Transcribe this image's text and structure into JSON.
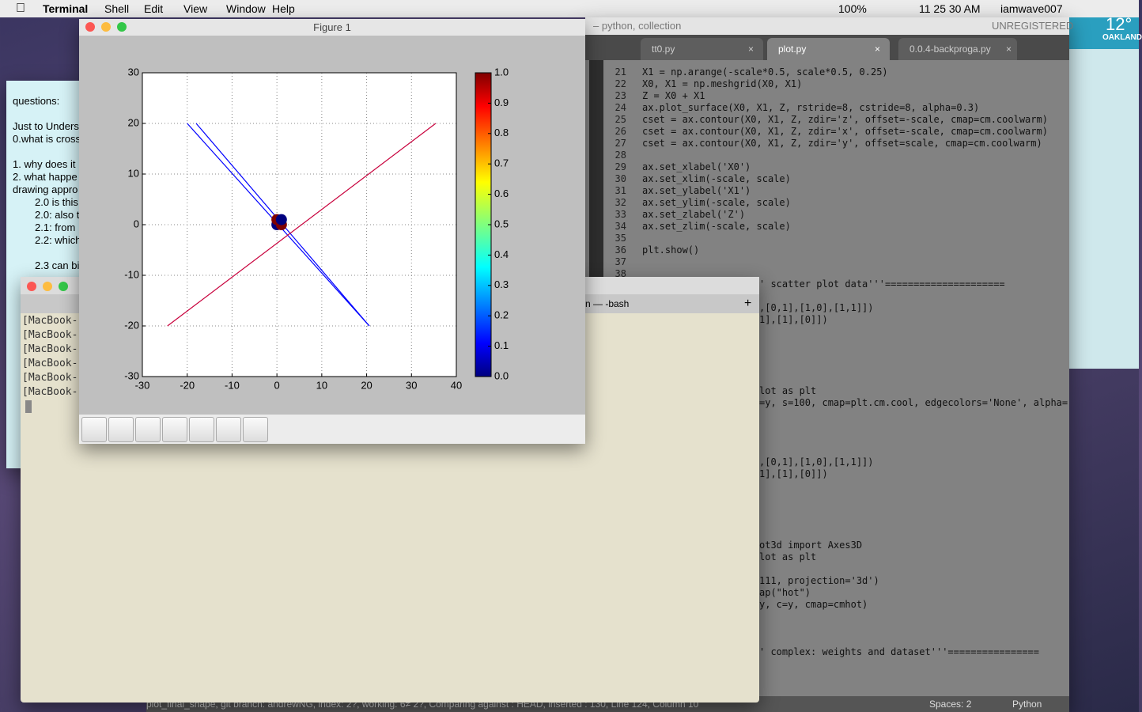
{
  "menubar": {
    "app": "Terminal",
    "items": [
      "Shell",
      "Edit",
      "View",
      "Window",
      "Help"
    ],
    "battery": "100%",
    "clock": "11 25 30 AM",
    "user": "iamwave007"
  },
  "weather": {
    "temp": "12°",
    "city": "OAKLAND"
  },
  "notes": {
    "lines": [
      "questions:",
      "Just to Unders",
      "0.what is cross",
      "1. why does it",
      "2. what happe",
      "drawing appro",
      "2.0 is this",
      "2.0: also t",
      "2.1: from",
      "2.2: which",
      "2.3 can bi"
    ]
  },
  "editor": {
    "title": "– python, collection",
    "badge": "UNREGISTERED",
    "tabs": [
      "tt0.py",
      "plot.py",
      "0.0.4-backproga.py"
    ],
    "lines": [
      {
        "n": 21,
        "code": "X1 = np.arange(-scale*0.5, scale*0.5, 0.25)"
      },
      {
        "n": 22,
        "code": "X0, X1 = np.meshgrid(X0, X1)"
      },
      {
        "n": 23,
        "code": "Z = X0 + X1"
      },
      {
        "n": 24,
        "code": "ax.plot_surface(X0, X1, Z, rstride=8, cstride=8, alpha=0.3)"
      },
      {
        "n": 25,
        "code": "cset = ax.contour(X0, X1, Z, zdir='z', offset=-scale, cmap=cm.coolwarm)"
      },
      {
        "n": 26,
        "code": "cset = ax.contour(X0, X1, Z, zdir='x', offset=-scale, cmap=cm.coolwarm)"
      },
      {
        "n": 27,
        "code": "cset = ax.contour(X0, X1, Z, zdir='y', offset=scale, cmap=cm.coolwarm)"
      },
      {
        "n": 28
      },
      {
        "n": 29,
        "code": "ax.set_xlabel('X0')"
      },
      {
        "n": 30,
        "code": "ax.set_xlim(-scale, scale)"
      },
      {
        "n": 31,
        "code": "ax.set_ylabel('X1')"
      },
      {
        "n": 32,
        "code": "ax.set_ylim(-scale, scale)"
      },
      {
        "n": 33,
        "code": "ax.set_zlabel('Z')"
      },
      {
        "n": 34,
        "code": "ax.set_zlim(-scale, scale)"
      },
      {
        "n": 35
      },
      {
        "n": 36,
        "code": "plt.show()"
      },
      {
        "n": 37
      },
      {
        "n": 38
      }
    ],
    "fragments": [
      "' scatter plot data'''=====================",
      ",[0,1],[1,0],[1,1]])",
      "1],[1],[0]])",
      "lot as plt",
      "=y, s=100, cmap=plt.cm.cool, edgecolors='None', alpha=",
      ",[0,1],[1,0],[1,1]])",
      "1],[1],[0]])",
      "ot3d import Axes3D",
      "lot as plt",
      "111, projection='3d')",
      "ap(\"hot\")",
      "y, c=y, cmap=cmhot)",
      "' complex: weights and dataset'''================"
    ],
    "status": "plot_final_shape, git branch: andrewNG, index: 2?, working: 6≠ 2?, Comparing against : HEAD, inserted : 130, Line 124, Column 10",
    "spaces": "Spaces: 2",
    "syntax": "Python"
  },
  "terminal": {
    "tab": "n — -bash",
    "lines": [
      "[MacBook-",
      "[MacBook-",
      "[MacBook-",
      "[MacBook-",
      "[MacBook-",
      "[MacBook-"
    ]
  },
  "figure": {
    "title": "Figure 1"
  },
  "chart_data": {
    "type": "line",
    "xlim": [
      -30,
      40
    ],
    "xticks": [
      -30,
      -20,
      -10,
      0,
      10,
      20,
      30,
      40
    ],
    "ylim": [
      -30,
      30
    ],
    "yticks": [
      -30,
      -20,
      -10,
      0,
      10,
      20,
      30
    ],
    "grid": true,
    "series": [
      {
        "color": "#0000ff",
        "x": [
          -20,
          20.6
        ],
        "values": [
          20,
          -20
        ]
      },
      {
        "color": "#0000ff",
        "x": [
          -18,
          20.6
        ],
        "values": [
          20,
          -20
        ]
      },
      {
        "color": "#c8003c",
        "x": [
          -24.4,
          35.4
        ],
        "values": [
          -20,
          20
        ]
      }
    ],
    "scatter": {
      "x": [
        0,
        0,
        1,
        1
      ],
      "values": [
        0,
        1,
        0,
        1
      ],
      "colors": [
        "#00007f",
        "#7f0000",
        "#7f0000",
        "#00007f"
      ]
    },
    "colorbar": {
      "ticks": [
        {
          "value": 0,
          "label": "0.0"
        },
        0.1,
        0.2,
        0.3,
        0.4,
        0.5,
        0.6,
        0.7,
        0.8,
        0.9,
        {
          "value": 1,
          "label": "1.0"
        }
      ]
    }
  }
}
